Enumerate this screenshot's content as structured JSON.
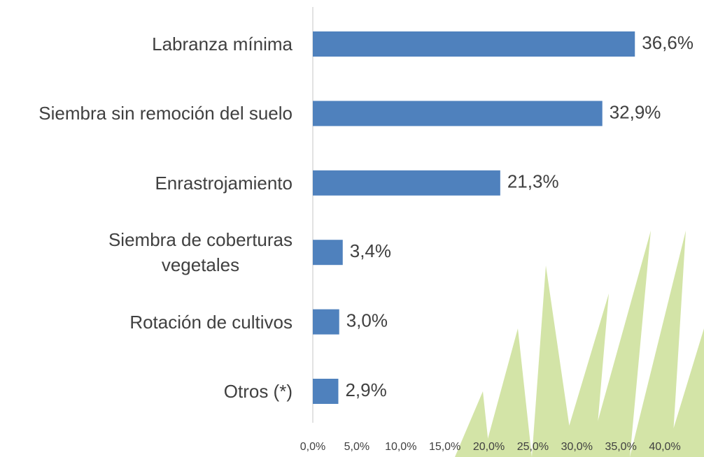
{
  "chart_data": {
    "type": "bar",
    "orientation": "horizontal",
    "categories": [
      "Labranza mínima",
      "Siembra sin remoción del suelo",
      "Enrastrojamiento",
      "Siembra de coberturas\nvegetales",
      "Rotación de cultivos",
      "Otros (*)"
    ],
    "values": [
      36.6,
      32.9,
      21.3,
      3.4,
      3.0,
      2.9
    ],
    "value_labels": [
      "36,6%",
      "32,9%",
      "21,3%",
      "3,4%",
      "3,0%",
      "2,9%"
    ],
    "color": "#4f81bd",
    "xlim": [
      0,
      40
    ],
    "xticks": [
      {
        "value": 0,
        "label": "0,0%"
      },
      {
        "value": 5,
        "label": "5,0%"
      },
      {
        "value": 10,
        "label": "10,0%"
      },
      {
        "value": 15,
        "label": "15,0%"
      },
      {
        "value": 20,
        "label": "20,0%"
      },
      {
        "value": 25,
        "label": "25,0%"
      },
      {
        "value": 30,
        "label": "30,0%"
      },
      {
        "value": 35,
        "label": "35,0%"
      },
      {
        "value": 40,
        "label": "40,0%"
      }
    ],
    "grid": false
  }
}
